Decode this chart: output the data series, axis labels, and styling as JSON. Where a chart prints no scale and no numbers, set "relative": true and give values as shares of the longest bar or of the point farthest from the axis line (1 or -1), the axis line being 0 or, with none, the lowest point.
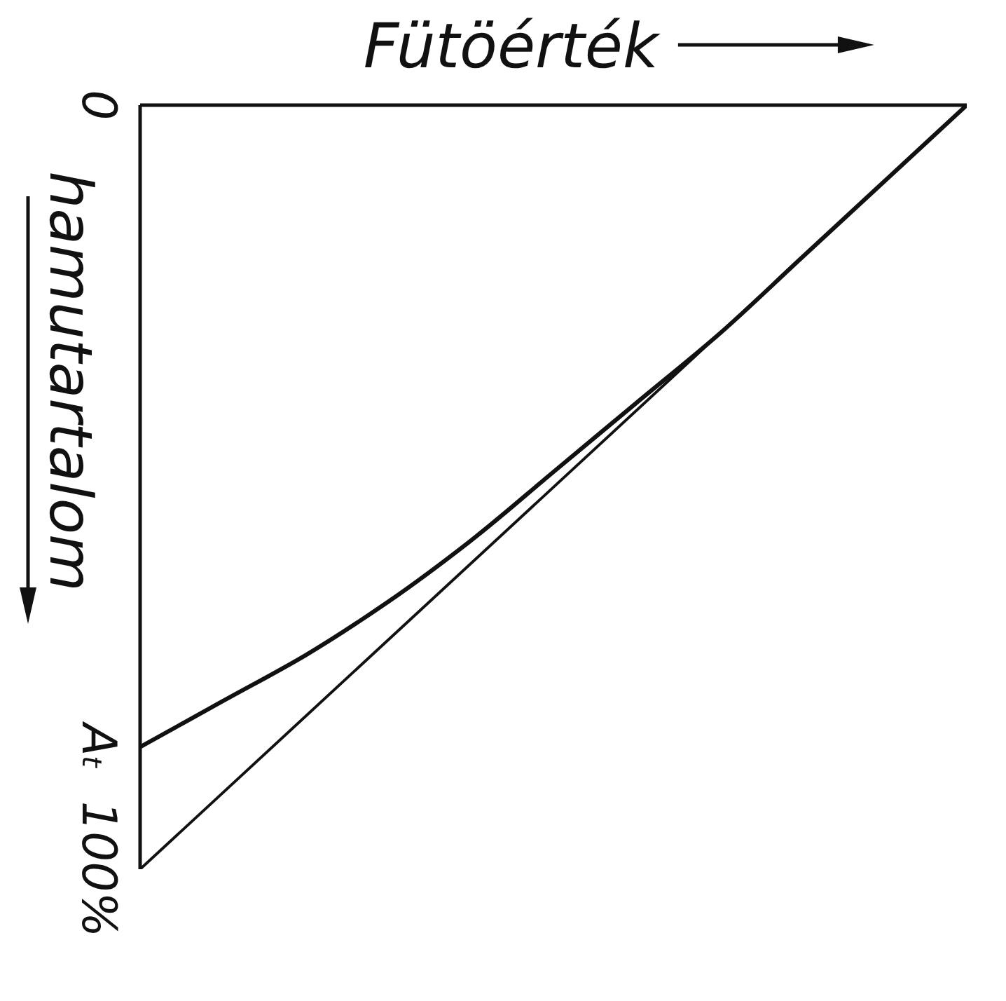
{
  "chart_data": {
    "type": "line",
    "orientation": "horizontal",
    "relative": true,
    "xlabel": "Fütöérték",
    "ylabel": "hamutartalom",
    "ylim": [
      100,
      0
    ],
    "yticks": [
      0,
      {
        "value": 84,
        "label": "Aₜ"
      },
      {
        "value": 100,
        "label": "100%"
      }
    ],
    "series": [
      {
        "color": "#111111",
        "x": [
          100,
          0
        ],
        "values": [
          0,
          1
        ]
      },
      {
        "color": "#111111",
        "x": [
          84,
          78,
          72,
          65,
          57,
          48,
          39,
          30,
          20,
          10,
          0
        ],
        "values": [
          0,
          0.1,
          0.2,
          0.3,
          0.4,
          0.5,
          0.6,
          0.7,
          0.8,
          0.9,
          1
        ]
      }
    ]
  }
}
